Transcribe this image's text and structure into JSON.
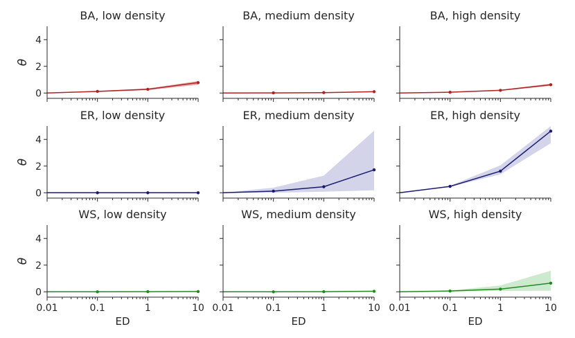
{
  "chart_data": [
    {
      "type": "line",
      "title": "BA, low density",
      "color": "#b22222",
      "x": [
        0.01,
        0.1,
        1,
        10
      ],
      "y": [
        0.0,
        0.12,
        0.28,
        0.78
      ],
      "band_low": [
        0.0,
        0.08,
        0.22,
        0.62
      ],
      "band_high": [
        0.0,
        0.16,
        0.34,
        0.9
      ]
    },
    {
      "type": "line",
      "title": "BA, medium density",
      "color": "#b22222",
      "x": [
        0.01,
        0.1,
        1,
        10
      ],
      "y": [
        0.0,
        0.01,
        0.03,
        0.1
      ],
      "band_low": [
        0.0,
        0.0,
        0.01,
        0.06
      ],
      "band_high": [
        0.0,
        0.02,
        0.05,
        0.14
      ]
    },
    {
      "type": "line",
      "title": "BA, high density",
      "color": "#b22222",
      "x": [
        0.01,
        0.1,
        1,
        10
      ],
      "y": [
        0.0,
        0.06,
        0.2,
        0.62
      ],
      "band_low": [
        0.0,
        0.04,
        0.16,
        0.54
      ],
      "band_high": [
        0.0,
        0.08,
        0.24,
        0.7
      ]
    },
    {
      "type": "line",
      "title": "ER, low density",
      "color": "#1a1a6e",
      "band_color": "#8c8cc9",
      "x": [
        0.01,
        0.1,
        1,
        10
      ],
      "y": [
        0.0,
        0.0,
        0.0,
        0.0
      ],
      "band_low": [
        0.0,
        0.0,
        0.0,
        0.0
      ],
      "band_high": [
        0.0,
        0.0,
        0.0,
        0.0
      ]
    },
    {
      "type": "line",
      "title": "ER, medium density",
      "color": "#1a1a6e",
      "band_color": "#8c8cc9",
      "x": [
        0.01,
        0.1,
        1,
        10
      ],
      "y": [
        0.0,
        0.12,
        0.45,
        1.72
      ],
      "band_low": [
        0.0,
        0.0,
        0.08,
        0.18
      ],
      "band_high": [
        0.0,
        0.38,
        1.28,
        4.65
      ]
    },
    {
      "type": "line",
      "title": "ER, high density",
      "color": "#1a1a6e",
      "band_color": "#8c8cc9",
      "x": [
        0.01,
        0.1,
        1,
        10
      ],
      "y": [
        0.0,
        0.48,
        1.62,
        4.62
      ],
      "band_low": [
        0.0,
        0.44,
        1.38,
        3.72
      ],
      "band_high": [
        0.0,
        0.53,
        2.05,
        5.0
      ]
    },
    {
      "type": "line",
      "title": "WS, low density",
      "color": "#1f8b1f",
      "band_color": "#7fc97f",
      "x": [
        0.01,
        0.1,
        1,
        10
      ],
      "y": [
        0.0,
        0.0,
        0.01,
        0.02
      ],
      "band_low": [
        0.0,
        0.0,
        0.0,
        0.0
      ],
      "band_high": [
        0.0,
        0.01,
        0.02,
        0.04
      ]
    },
    {
      "type": "line",
      "title": "WS, medium density",
      "color": "#1f8b1f",
      "band_color": "#7fc97f",
      "x": [
        0.01,
        0.1,
        1,
        10
      ],
      "y": [
        0.0,
        0.0,
        0.01,
        0.04
      ],
      "band_low": [
        0.0,
        0.0,
        0.0,
        0.01
      ],
      "band_high": [
        0.0,
        0.01,
        0.03,
        0.08
      ]
    },
    {
      "type": "line",
      "title": "WS, high density",
      "color": "#1f8b1f",
      "band_color": "#7fc97f",
      "x": [
        0.01,
        0.1,
        1,
        10
      ],
      "y": [
        0.0,
        0.06,
        0.2,
        0.65
      ],
      "band_low": [
        0.0,
        0.02,
        0.06,
        0.08
      ],
      "band_high": [
        0.0,
        0.1,
        0.48,
        1.58
      ]
    }
  ],
  "axes": {
    "xlabel": "ED",
    "ylabel": "θ",
    "xscale": "log",
    "xlim": [
      0.01,
      10
    ],
    "ylim": [
      -0.4,
      5.0
    ],
    "xticks": [
      "0.01",
      "0.1",
      "1",
      "10"
    ],
    "yticks": [
      "0",
      "2",
      "4"
    ]
  }
}
